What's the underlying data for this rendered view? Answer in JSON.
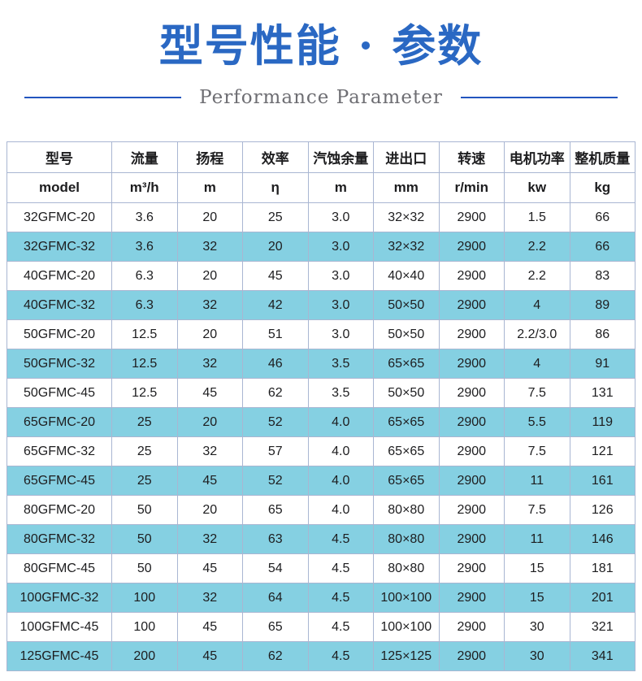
{
  "header": {
    "title": "型号性能 · 参数",
    "subtitle": "Performance Parameter"
  },
  "colors": {
    "title_blue": "#2a68c3",
    "divider_blue": "#2355bf",
    "subtitle_gray": "#6e6e73",
    "row_highlight": "#85d0e2",
    "table_border": "#a9b6d2"
  },
  "table": {
    "columns": [
      "型号",
      "流量",
      "扬程",
      "效率",
      "汽蚀余量",
      "进出口",
      "转速",
      "电机功率",
      "整机质量"
    ],
    "units": [
      "model",
      "m³/h",
      "m",
      "η",
      "m",
      "mm",
      "r/min",
      "kw",
      "kg"
    ],
    "rows": [
      [
        "32GFMC-20",
        "3.6",
        "20",
        "25",
        "3.0",
        "32×32",
        "2900",
        "1.5",
        "66"
      ],
      [
        "32GFMC-32",
        "3.6",
        "32",
        "20",
        "3.0",
        "32×32",
        "2900",
        "2.2",
        "66"
      ],
      [
        "40GFMC-20",
        "6.3",
        "20",
        "45",
        "3.0",
        "40×40",
        "2900",
        "2.2",
        "83"
      ],
      [
        "40GFMC-32",
        "6.3",
        "32",
        "42",
        "3.0",
        "50×50",
        "2900",
        "4",
        "89"
      ],
      [
        "50GFMC-20",
        "12.5",
        "20",
        "51",
        "3.0",
        "50×50",
        "2900",
        "2.2/3.0",
        "86"
      ],
      [
        "50GFMC-32",
        "12.5",
        "32",
        "46",
        "3.5",
        "65×65",
        "2900",
        "4",
        "91"
      ],
      [
        "50GFMC-45",
        "12.5",
        "45",
        "62",
        "3.5",
        "50×50",
        "2900",
        "7.5",
        "131"
      ],
      [
        "65GFMC-20",
        "25",
        "20",
        "52",
        "4.0",
        "65×65",
        "2900",
        "5.5",
        "119"
      ],
      [
        "65GFMC-32",
        "25",
        "32",
        "57",
        "4.0",
        "65×65",
        "2900",
        "7.5",
        "121"
      ],
      [
        "65GFMC-45",
        "25",
        "45",
        "52",
        "4.0",
        "65×65",
        "2900",
        "11",
        "161"
      ],
      [
        "80GFMC-20",
        "50",
        "20",
        "65",
        "4.0",
        "80×80",
        "2900",
        "7.5",
        "126"
      ],
      [
        "80GFMC-32",
        "50",
        "32",
        "63",
        "4.5",
        "80×80",
        "2900",
        "11",
        "146"
      ],
      [
        "80GFMC-45",
        "50",
        "45",
        "54",
        "4.5",
        "80×80",
        "2900",
        "15",
        "181"
      ],
      [
        "100GFMC-32",
        "100",
        "32",
        "64",
        "4.5",
        "100×100",
        "2900",
        "15",
        "201"
      ],
      [
        "100GFMC-45",
        "100",
        "45",
        "65",
        "4.5",
        "100×100",
        "2900",
        "30",
        "321"
      ],
      [
        "125GFMC-45",
        "200",
        "45",
        "62",
        "4.5",
        "125×125",
        "2900",
        "30",
        "341"
      ]
    ]
  }
}
